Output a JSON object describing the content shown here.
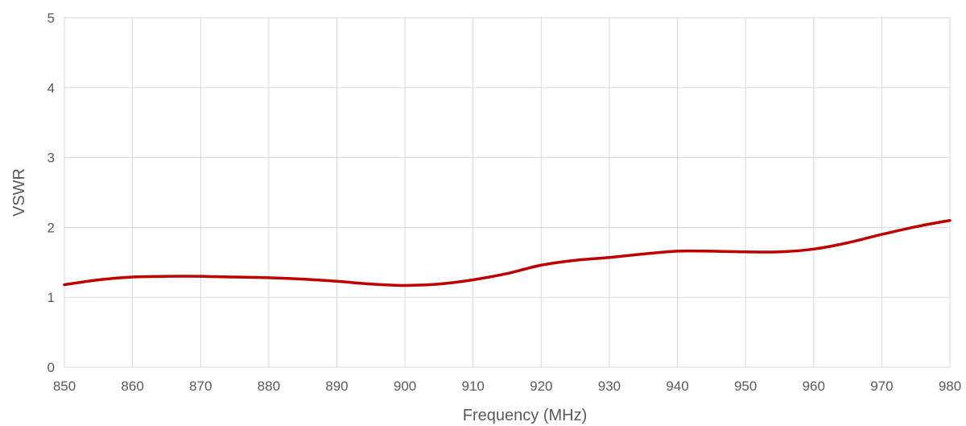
{
  "chart_data": {
    "type": "line",
    "title": "",
    "xlabel": "Frequency (MHz)",
    "ylabel": "VSWR",
    "xlim": [
      850,
      980
    ],
    "ylim": [
      0,
      5
    ],
    "x_ticks": [
      850,
      860,
      870,
      880,
      890,
      900,
      910,
      920,
      930,
      940,
      950,
      960,
      970,
      980
    ],
    "y_ticks": [
      0,
      1,
      2,
      3,
      4,
      5
    ],
    "grid": true,
    "legend": "none",
    "series": [
      {
        "color": "#c00000",
        "x": [
          850,
          855,
          860,
          865,
          870,
          875,
          880,
          885,
          890,
          895,
          900,
          905,
          910,
          915,
          920,
          925,
          930,
          935,
          940,
          945,
          950,
          955,
          960,
          965,
          970,
          975,
          980
        ],
        "y": [
          1.18,
          1.25,
          1.29,
          1.3,
          1.3,
          1.29,
          1.28,
          1.26,
          1.23,
          1.19,
          1.17,
          1.19,
          1.25,
          1.34,
          1.46,
          1.53,
          1.57,
          1.62,
          1.66,
          1.66,
          1.65,
          1.65,
          1.69,
          1.78,
          1.9,
          2.01,
          2.1
        ]
      }
    ]
  }
}
